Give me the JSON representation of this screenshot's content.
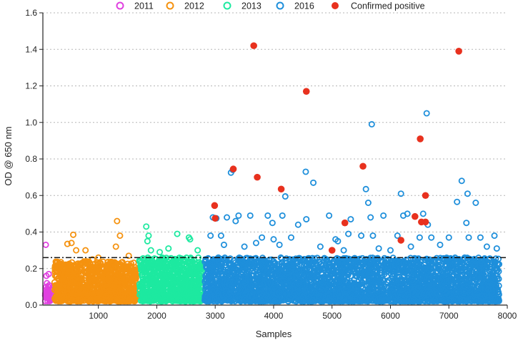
{
  "chart_data": {
    "type": "scatter",
    "xlabel": "Samples",
    "ylabel": "OD @ 650 nm",
    "xlim": [
      50,
      8000
    ],
    "ylim": [
      0,
      1.6
    ],
    "x_ticks": [
      1000,
      2000,
      3000,
      4000,
      5000,
      6000,
      7000,
      8000
    ],
    "y_ticks": [
      0.0,
      0.2,
      0.4,
      0.6,
      0.8,
      1.0,
      1.2,
      1.4,
      1.6
    ],
    "grid": "horizontal-dotted",
    "legend_position": "top",
    "threshold": {
      "y": 0.26,
      "style": "dash-dot"
    },
    "series": [
      {
        "name": "2011",
        "marker": "open-circle",
        "color": "#e040e0",
        "x_range": [
          80,
          200
        ],
        "n_bulk": 40,
        "bulk_max": 0.11,
        "points": [
          [
            100,
            0.33
          ],
          [
            110,
            0.16
          ],
          [
            150,
            0.17
          ],
          [
            120,
            0.12
          ]
        ]
      },
      {
        "name": "2012",
        "marker": "open-circle",
        "color": "#f5920f",
        "x_range": [
          250,
          1650
        ],
        "n_bulk": 1000,
        "bulk_max": 0.24,
        "points": [
          [
            1320,
            0.46
          ],
          [
            570,
            0.385
          ],
          [
            1370,
            0.38
          ],
          [
            470,
            0.335
          ],
          [
            540,
            0.34
          ],
          [
            780,
            0.3
          ],
          [
            620,
            0.3
          ],
          [
            1300,
            0.32
          ],
          [
            1000,
            0.26
          ],
          [
            1520,
            0.27
          ],
          [
            900,
            0.25
          ]
        ]
      },
      {
        "name": "2013",
        "marker": "open-circle",
        "color": "#1de9a0",
        "x_range": [
          1700,
          2780
        ],
        "n_bulk": 800,
        "bulk_max": 0.26,
        "points": [
          [
            1820,
            0.43
          ],
          [
            1860,
            0.38
          ],
          [
            1840,
            0.35
          ],
          [
            2350,
            0.39
          ],
          [
            2550,
            0.37
          ],
          [
            2570,
            0.36
          ],
          [
            2200,
            0.31
          ],
          [
            1900,
            0.3
          ],
          [
            2050,
            0.29
          ],
          [
            2700,
            0.3
          ]
        ]
      },
      {
        "name": "2016",
        "marker": "open-circle",
        "color": "#1e8fdb",
        "x_range": [
          2820,
          7860
        ],
        "n_bulk": 3200,
        "bulk_max": 0.26,
        "points": [
          [
            6620,
            1.05
          ],
          [
            5680,
            0.99
          ],
          [
            3270,
            0.725
          ],
          [
            3300,
            0.74
          ],
          [
            4550,
            0.73
          ],
          [
            4680,
            0.67
          ],
          [
            7220,
            0.68
          ],
          [
            5580,
            0.635
          ],
          [
            6180,
            0.61
          ],
          [
            7320,
            0.61
          ],
          [
            4200,
            0.595
          ],
          [
            5620,
            0.56
          ],
          [
            7460,
            0.56
          ],
          [
            7140,
            0.565
          ],
          [
            2960,
            0.48
          ],
          [
            3020,
            0.475
          ],
          [
            3200,
            0.48
          ],
          [
            3400,
            0.49
          ],
          [
            3600,
            0.49
          ],
          [
            3900,
            0.49
          ],
          [
            4150,
            0.49
          ],
          [
            4560,
            0.47
          ],
          [
            4950,
            0.49
          ],
          [
            5320,
            0.47
          ],
          [
            5660,
            0.48
          ],
          [
            5880,
            0.49
          ],
          [
            6220,
            0.49
          ],
          [
            6290,
            0.5
          ],
          [
            6560,
            0.5
          ],
          [
            3350,
            0.46
          ],
          [
            3980,
            0.45
          ],
          [
            4420,
            0.44
          ],
          [
            5100,
            0.35
          ],
          [
            6640,
            0.44
          ],
          [
            7300,
            0.45
          ],
          [
            2920,
            0.38
          ],
          [
            3100,
            0.38
          ],
          [
            3800,
            0.37
          ],
          [
            4000,
            0.36
          ],
          [
            4300,
            0.37
          ],
          [
            5060,
            0.36
          ],
          [
            5280,
            0.39
          ],
          [
            5500,
            0.38
          ],
          [
            5700,
            0.38
          ],
          [
            6120,
            0.38
          ],
          [
            6500,
            0.37
          ],
          [
            6700,
            0.37
          ],
          [
            7000,
            0.37
          ],
          [
            7340,
            0.37
          ],
          [
            7540,
            0.37
          ],
          [
            7780,
            0.38
          ],
          [
            3150,
            0.33
          ],
          [
            3500,
            0.32
          ],
          [
            3700,
            0.34
          ],
          [
            4100,
            0.33
          ],
          [
            4800,
            0.32
          ],
          [
            5200,
            0.3
          ],
          [
            5800,
            0.31
          ],
          [
            6000,
            0.3
          ],
          [
            6350,
            0.32
          ],
          [
            6850,
            0.33
          ],
          [
            7650,
            0.32
          ],
          [
            7820,
            0.31
          ]
        ]
      },
      {
        "name": "Confirmed positive",
        "marker": "filled-circle",
        "color": "#e8311e",
        "n_bulk": 0,
        "points": [
          [
            3660,
            1.42
          ],
          [
            4560,
            1.17
          ],
          [
            7170,
            1.39
          ],
          [
            6510,
            0.91
          ],
          [
            5530,
            0.76
          ],
          [
            3310,
            0.745
          ],
          [
            3720,
            0.7
          ],
          [
            4130,
            0.635
          ],
          [
            6600,
            0.6
          ],
          [
            2990,
            0.545
          ],
          [
            3000,
            0.475
          ],
          [
            5220,
            0.45
          ],
          [
            6420,
            0.485
          ],
          [
            6530,
            0.455
          ],
          [
            6600,
            0.455
          ],
          [
            6180,
            0.355
          ],
          [
            5000,
            0.3
          ]
        ]
      }
    ]
  }
}
